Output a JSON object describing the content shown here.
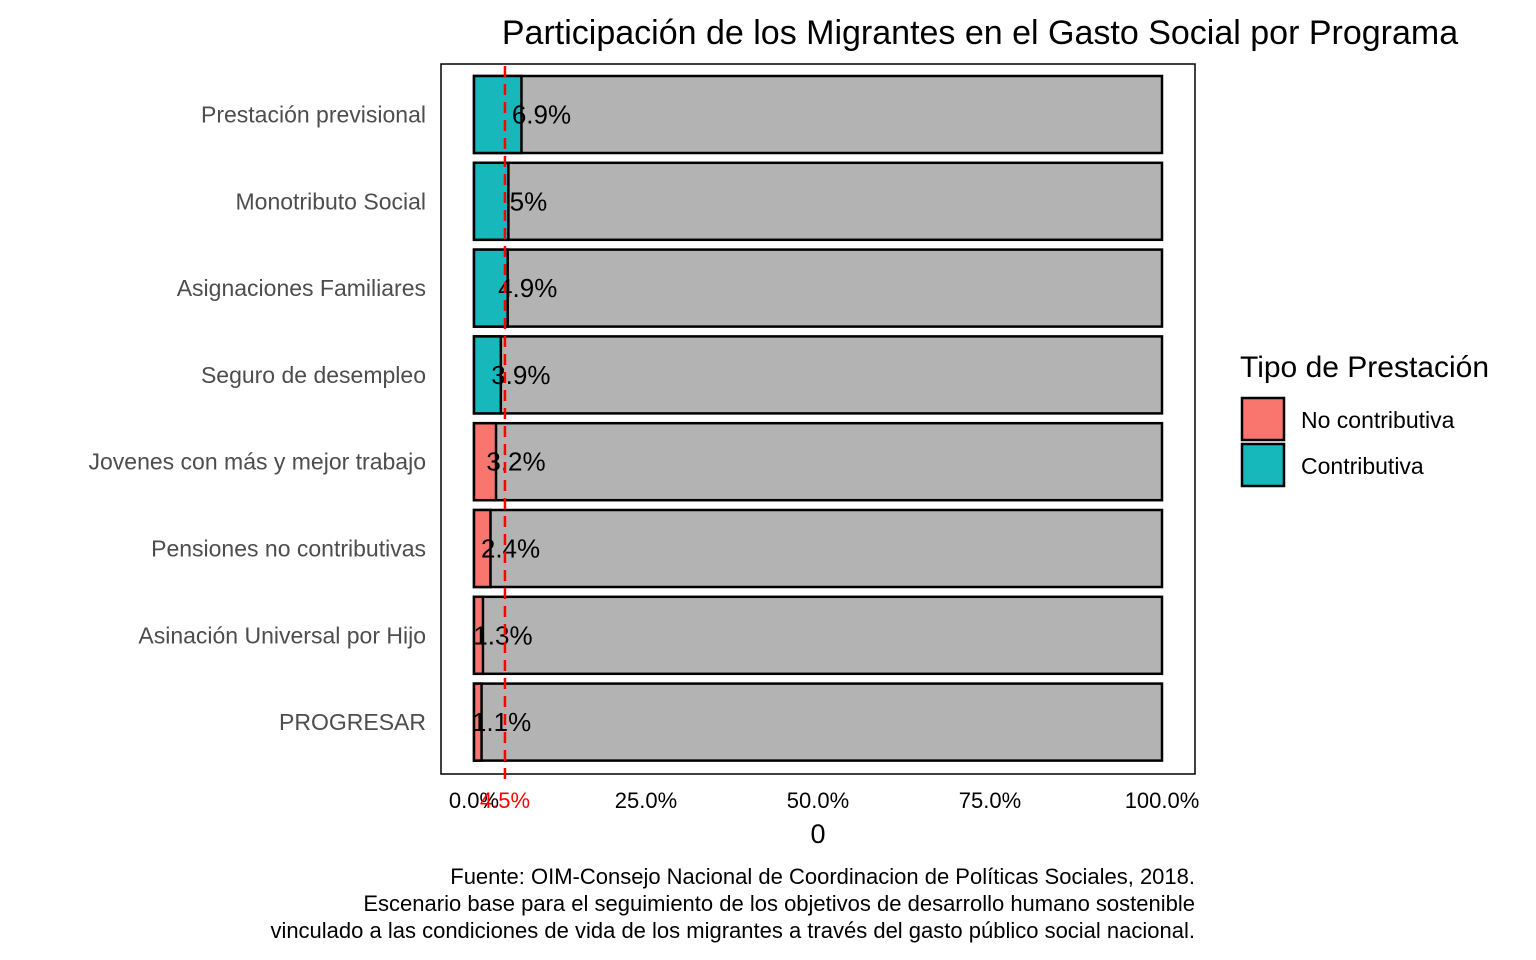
{
  "chart_data": {
    "type": "bar",
    "orientation": "horizontal",
    "stacked_to_100": true,
    "title": "Participación de los Migrantes en el Gasto Social por Programa",
    "xlabel": "0",
    "xlim": [
      0,
      100
    ],
    "x_ticks": [
      "0.0%",
      "25.0%",
      "50.0%",
      "75.0%",
      "100.0%"
    ],
    "x_tick_values": [
      0,
      25,
      50,
      75,
      100
    ],
    "categories": [
      "Prestación previsional",
      "Monotributo Social",
      "Asignaciones Familiares",
      "Seguro de desempleo",
      "Jovenes con más y mejor trabajo",
      "Pensiones no contributivas",
      "Asinación Universal por Hijo",
      "PROGRESAR"
    ],
    "values": [
      6.9,
      5,
      4.9,
      3.9,
      3.2,
      2.4,
      1.3,
      1.1
    ],
    "data_labels": [
      "6.9%",
      "5%",
      "4.9%",
      "3.9%",
      "3.2%",
      "2.4%",
      "1.3%",
      "1.1%"
    ],
    "types": [
      "Contributiva",
      "Contributiva",
      "Contributiva",
      "Contributiva",
      "No contributiva",
      "No contributiva",
      "No contributiva",
      "No contributiva"
    ],
    "remainder_color": "#b3b3b3",
    "reference_line": {
      "value": 4.5,
      "label": "4.5%",
      "color": "#ff0000"
    },
    "legend": {
      "title": "Tipo de Prestación",
      "position": "right",
      "items": [
        {
          "name": "No contributiva",
          "color": "#f8766d"
        },
        {
          "name": "Contributiva",
          "color": "#17b8bc"
        }
      ]
    },
    "grid": false,
    "caption": [
      "Fuente: OIM-Consejo Nacional de Coordinacion de Políticas Sociales, 2018.",
      "Escenario base para el seguimiento de los objetivos de desarrollo humano sostenible",
      "vinculado a las condiciones de vida de los migrantes a través del gasto público social nacional."
    ]
  }
}
